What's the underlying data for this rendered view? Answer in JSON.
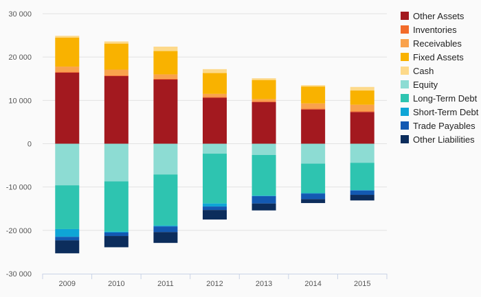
{
  "chart_data": {
    "type": "bar",
    "stacked": true,
    "categories": [
      "2009",
      "2010",
      "2011",
      "2012",
      "2013",
      "2014",
      "2015"
    ],
    "ylim": [
      -30000,
      30000
    ],
    "yticks": [
      30000,
      20000,
      10000,
      0,
      -10000,
      -20000,
      -30000
    ],
    "ytick_labels": [
      "30 000",
      "20 000",
      "10 000",
      "0",
      "-10 000",
      "-20 000",
      "-30 000"
    ],
    "grid": true,
    "legend_position": "right",
    "series": [
      {
        "name": "Other Assets",
        "color": "#a3191f",
        "values": [
          16400,
          15600,
          14800,
          10600,
          9600,
          7900,
          7300
        ]
      },
      {
        "name": "Inventories",
        "color": "#f26b2a",
        "values": [
          200,
          200,
          200,
          200,
          200,
          200,
          200
        ]
      },
      {
        "name": "Receivables",
        "color": "#f9a24c",
        "values": [
          1200,
          1300,
          1000,
          700,
          500,
          1200,
          1500
        ]
      },
      {
        "name": "Fixed Assets",
        "color": "#f9b200",
        "values": [
          6700,
          6000,
          5400,
          4800,
          4400,
          3900,
          3300
        ]
      },
      {
        "name": "Cash",
        "color": "#fdd98a",
        "values": [
          400,
          500,
          1000,
          900,
          400,
          300,
          800
        ]
      },
      {
        "name": "Equity",
        "color": "#8ddcd3",
        "values": [
          -9600,
          -8700,
          -7100,
          -2300,
          -2600,
          -4600,
          -4400
        ]
      },
      {
        "name": "Long-Term Debt",
        "color": "#2ec4b0",
        "values": [
          -10100,
          -11600,
          -11800,
          -11500,
          -9400,
          -6800,
          -6300
        ]
      },
      {
        "name": "Short-Term Debt",
        "color": "#0ea5d6",
        "values": [
          -1800,
          -200,
          -200,
          -700,
          -100,
          -100,
          -100
        ]
      },
      {
        "name": "Trade Payables",
        "color": "#1359b2",
        "values": [
          -800,
          -800,
          -1300,
          -800,
          -1700,
          -1300,
          -1000
        ]
      },
      {
        "name": "Other Liabilities",
        "color": "#0c2d5c",
        "values": [
          -3000,
          -2600,
          -2500,
          -2200,
          -1600,
          -900,
          -1300
        ]
      }
    ]
  }
}
